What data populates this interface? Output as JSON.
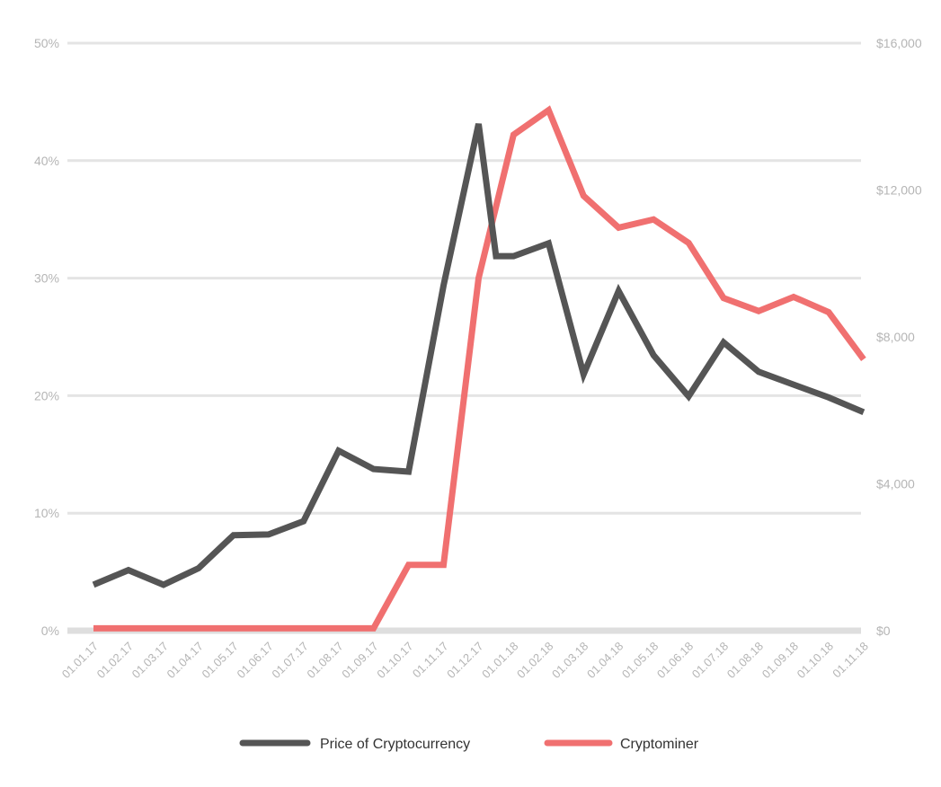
{
  "chart_data": {
    "type": "line",
    "title": "",
    "xlabel": "",
    "ylabel": "",
    "ylabel_right": "",
    "categories": [
      "01.01.17",
      "01.02.17",
      "01.03.17",
      "01.04.17",
      "01.05.17",
      "01.06.17",
      "01.07.17",
      "01.08.17",
      "01.09.17",
      "01.10.17",
      "01.11.17",
      "01.12.17",
      "01.01.18",
      "01.02.18",
      "01.03.18",
      "01.04.18",
      "01.05.18",
      "01.06.18",
      "01.07.18",
      "01.08.18",
      "01.09.18",
      "01.10.18",
      "01.11.18"
    ],
    "ylim_left": [
      0,
      50
    ],
    "ylim_right": [
      0,
      16000
    ],
    "left_ticks": [
      "0%",
      "10%",
      "20%",
      "30%",
      "40%",
      "50%"
    ],
    "left_tick_values": [
      0,
      10,
      20,
      30,
      40,
      50
    ],
    "right_ticks": [
      "$0",
      "$4,000",
      "$8,000",
      "$12,000",
      "$16,000"
    ],
    "right_tick_values": [
      0,
      4000,
      8000,
      12000,
      16000
    ],
    "grid": true,
    "legend_position": "bottom-center",
    "series": [
      {
        "name": "Price of Cryptocurrency",
        "axis": "right",
        "color": "#555555",
        "extra_x": [
          11.5
        ],
        "extra_y": [
          10200
        ],
        "x": [
          0,
          1,
          2,
          3,
          4,
          5,
          6,
          7,
          8,
          9,
          10,
          11,
          12,
          13,
          14,
          15,
          16,
          17,
          18,
          19,
          20,
          21,
          22
        ],
        "values": [
          1250,
          1650,
          1250,
          1700,
          2600,
          2620,
          2980,
          4900,
          4400,
          4330,
          9400,
          13800,
          10200,
          10550,
          6980,
          9250,
          7500,
          6380,
          7850,
          7050,
          6700,
          6350,
          5950
        ]
      },
      {
        "name": "Cryptominer",
        "axis": "left",
        "color": "#f07070",
        "x": [
          0,
          1,
          2,
          3,
          4,
          5,
          6,
          7,
          8,
          9,
          10,
          11,
          12,
          13,
          14,
          15,
          16,
          17,
          18,
          19,
          20,
          21,
          22
        ],
        "values": [
          0.2,
          0.2,
          0.2,
          0.2,
          0.2,
          0.2,
          0.2,
          0.2,
          0.2,
          5.6,
          5.6,
          30,
          42.2,
          44.3,
          37,
          34.3,
          35,
          33,
          28.3,
          27.2,
          28.4,
          27.1,
          23.1
        ]
      }
    ]
  }
}
